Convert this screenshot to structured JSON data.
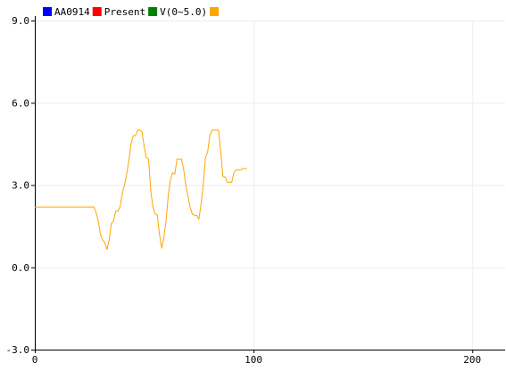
{
  "chart_data": {
    "type": "line",
    "title": "",
    "xlabel": "",
    "ylabel": "",
    "xlim": [
      0,
      215
    ],
    "ylim": [
      -3.0,
      9.0
    ],
    "grid": true,
    "legend_position": "top-left",
    "x_ticks": [
      0,
      100,
      200
    ],
    "x_tick_labels": [
      "0",
      "100",
      "200"
    ],
    "y_ticks": [
      -3.0,
      0.0,
      3.0,
      6.0,
      9.0
    ],
    "y_tick_labels": [
      "-3.0",
      "0.0",
      "3.0",
      "6.0",
      "9.0"
    ],
    "legend": [
      {
        "label": "AA0914",
        "color": "#0000ff"
      },
      {
        "label": "Present",
        "color": "#ff0000"
      },
      {
        "label": "V(0~5.0)",
        "color": "#008000"
      },
      {
        "label": "",
        "color": "#ffa500"
      }
    ],
    "series": [
      {
        "color": "#ffa500",
        "x": [
          0,
          5,
          10,
          15,
          20,
          25,
          27,
          28,
          29,
          30,
          31,
          32,
          33,
          34,
          35,
          36,
          37,
          38,
          39,
          40,
          41,
          42,
          43,
          44,
          45,
          46,
          47,
          48,
          49,
          50,
          51,
          52,
          53,
          54,
          55,
          56,
          57,
          58,
          59,
          60,
          61,
          62,
          63,
          64,
          65,
          66,
          67,
          68,
          69,
          70,
          71,
          72,
          73,
          74,
          75,
          76,
          77,
          78,
          79,
          80,
          81,
          82,
          83,
          84,
          85,
          86,
          87,
          88,
          89,
          90,
          91,
          92,
          93,
          94,
          95,
          96,
          97
        ],
        "values": [
          2.2,
          2.2,
          2.2,
          2.2,
          2.2,
          2.2,
          2.2,
          2.0,
          1.7,
          1.2,
          1.0,
          0.9,
          0.65,
          1.0,
          1.6,
          1.7,
          2.05,
          2.05,
          2.2,
          2.7,
          3.0,
          3.4,
          3.9,
          4.5,
          4.8,
          4.8,
          5.0,
          5.0,
          4.95,
          4.4,
          4.0,
          3.95,
          2.8,
          2.2,
          1.95,
          1.9,
          1.2,
          0.7,
          1.1,
          1.7,
          2.6,
          3.2,
          3.45,
          3.4,
          3.95,
          3.95,
          3.95,
          3.6,
          3.0,
          2.6,
          2.2,
          1.95,
          1.9,
          1.9,
          1.75,
          2.3,
          3.0,
          4.0,
          4.2,
          4.8,
          5.0,
          5.0,
          5.0,
          5.0,
          4.2,
          3.3,
          3.3,
          3.1,
          3.1,
          3.1,
          3.45,
          3.55,
          3.55,
          3.55,
          3.6,
          3.6,
          3.6
        ]
      }
    ]
  }
}
